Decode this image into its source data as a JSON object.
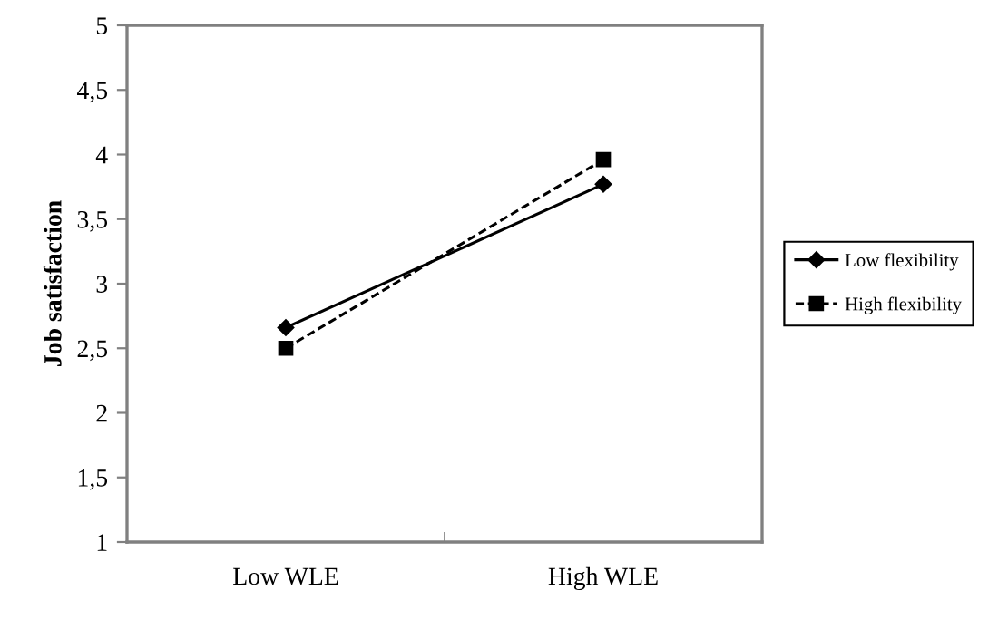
{
  "chart_data": {
    "type": "line",
    "ylabel": "Job satisfaction",
    "categories": [
      "Low WLE",
      "High WLE"
    ],
    "series": [
      {
        "name": "Low flexibility",
        "color": "#000000",
        "values": [
          2.66,
          3.77
        ],
        "marker": "diamond",
        "line_style": "solid"
      },
      {
        "name": "High flexibility",
        "color": "#000000",
        "values": [
          2.5,
          3.96
        ],
        "marker": "square",
        "line_style": "dashed"
      }
    ],
    "ylim": [
      1,
      5
    ],
    "yticks": [
      1,
      {
        "value": 1.5,
        "label": "1,5"
      },
      2,
      {
        "value": 2.5,
        "label": "2,5"
      },
      3,
      {
        "value": 3.5,
        "label": "3,5"
      },
      4,
      {
        "value": 4.5,
        "label": "4,5"
      },
      5
    ],
    "grid": false,
    "legend": "right"
  }
}
